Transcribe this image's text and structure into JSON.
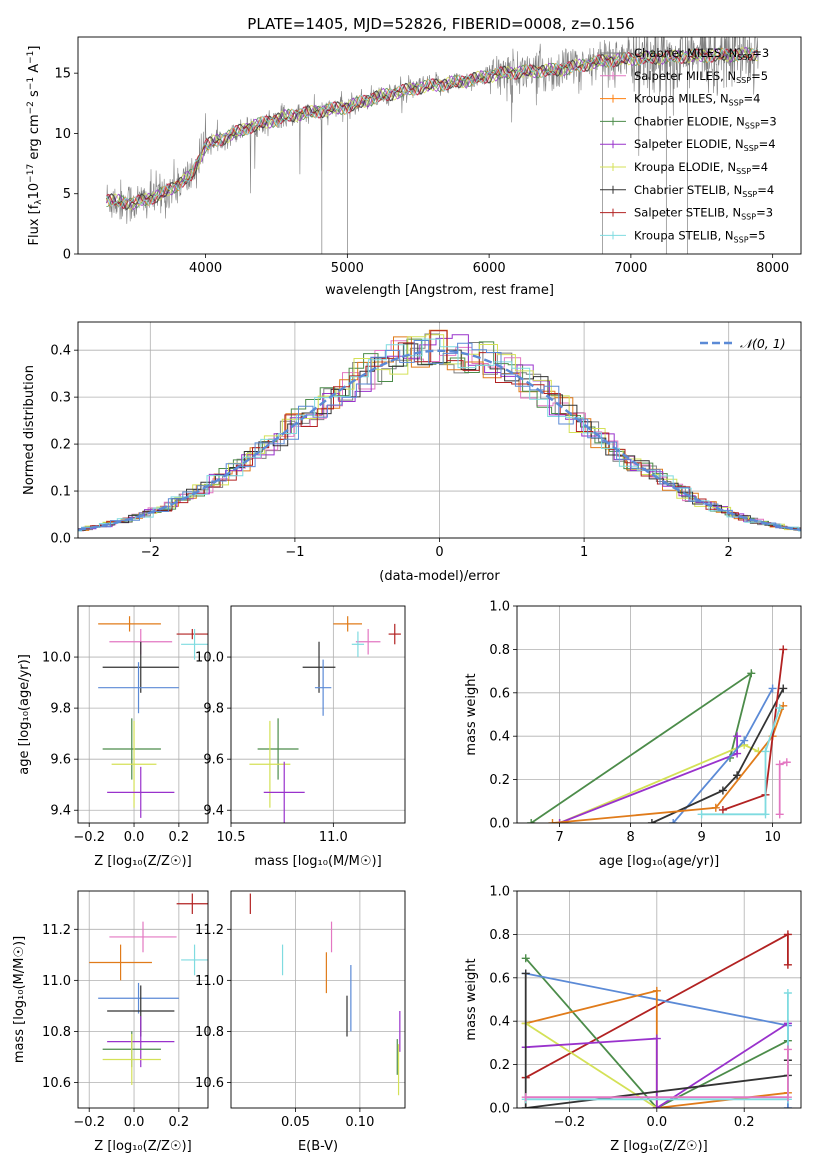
{
  "figure_title": "PLATE=1405, MJD=52826, FIBERID=0008, z=0.156",
  "colors": {
    "chabrier_miles": "#7f7f7f",
    "salpeter_miles": "#e377c2",
    "kroupa_miles": "#ff7f0e",
    "chabrier_elodie": "#4c8c4a",
    "salpeter_elodie": "#9932cc",
    "kroupa_elodie": "#d4e157",
    "chabrier_stelib": "#333333",
    "salpeter_stelib": "#b22222",
    "kroupa_stelib": "#7fdbe0",
    "blue": "#5b8ad6",
    "orange2": "#e07b1a",
    "normal": "#5b8ad6"
  },
  "chart_data": [
    {
      "type": "line",
      "title": "PLATE=1405, MJD=52826, FIBERID=0008, z=0.156",
      "xlabel": "wavelength [Angstrom, rest frame]",
      "ylabel_parts": [
        "Flux [f",
        "λ",
        "10",
        "−17",
        " erg cm",
        "−2",
        " s",
        "−1",
        " A",
        "−1",
        "]"
      ],
      "xlim": [
        3100,
        8200
      ],
      "ylim": [
        0,
        18
      ],
      "xticks": [
        4000,
        5000,
        6000,
        7000,
        8000
      ],
      "yticks": [
        0,
        5,
        10,
        15
      ],
      "legend_position": "upper-right",
      "legend": [
        {
          "label": "Chabrier MILES, N",
          "sub": "SSP",
          "suffix": "=3",
          "color_key": "chabrier_miles"
        },
        {
          "label": "Salpeter MILES, N",
          "sub": "SSP",
          "suffix": "=5",
          "color_key": "salpeter_miles"
        },
        {
          "label": "Kroupa MILES, N",
          "sub": "SSP",
          "suffix": "=4",
          "color_key": "kroupa_miles"
        },
        {
          "label": "Chabrier ELODIE, N",
          "sub": "SSP",
          "suffix": "=3",
          "color_key": "chabrier_elodie"
        },
        {
          "label": "Salpeter ELODIE, N",
          "sub": "SSP",
          "suffix": "=4",
          "color_key": "salpeter_elodie"
        },
        {
          "label": "Kroupa ELODIE, N",
          "sub": "SSP",
          "suffix": "=4",
          "color_key": "kroupa_elodie"
        },
        {
          "label": "Chabrier STELIB, N",
          "sub": "SSP",
          "suffix": "=4",
          "color_key": "chabrier_stelib"
        },
        {
          "label": "Salpeter STELIB, N",
          "sub": "SSP",
          "suffix": "=3",
          "color_key": "salpeter_stelib"
        },
        {
          "label": "Kroupa STELIB, N",
          "sub": "SSP",
          "suffix": "=5",
          "color_key": "kroupa_stelib"
        }
      ],
      "continuum": [
        [
          3300,
          4.5
        ],
        [
          3500,
          4.2
        ],
        [
          3700,
          5.0
        ],
        [
          3900,
          6.5
        ],
        [
          4000,
          9.0
        ],
        [
          4300,
          10.5
        ],
        [
          4600,
          11.5
        ],
        [
          5000,
          12.2
        ],
        [
          5200,
          13.0
        ],
        [
          5500,
          13.8
        ],
        [
          5800,
          14.3
        ],
        [
          6100,
          15.0
        ],
        [
          6500,
          15.3
        ],
        [
          6800,
          16.0
        ],
        [
          7000,
          16.2
        ],
        [
          7400,
          16.4
        ],
        [
          7900,
          16.6
        ]
      ]
    },
    {
      "type": "step",
      "xlabel": "(data-model)/error",
      "ylabel": "Normed distribution",
      "xlim": [
        -2.5,
        2.5
      ],
      "ylim": [
        0,
        0.46
      ],
      "xticks": [
        -2,
        -1,
        0,
        1,
        2
      ],
      "yticks": [
        0.0,
        0.1,
        0.2,
        0.3,
        0.4
      ],
      "grid": true,
      "legend_position": "upper-right",
      "legend": [
        {
          "label": "𝒩(0, 1)",
          "color_key": "normal",
          "style": "dashed"
        }
      ]
    },
    {
      "type": "scatter",
      "xlabel": "Z [log₁₀(Z/Z☉)]",
      "ylabel": "age  [log₁₀(age/yr)]",
      "xlim": [
        -0.25,
        0.33
      ],
      "ylim": [
        9.35,
        10.2
      ],
      "xticks": [
        -0.2,
        0.0,
        0.2
      ],
      "yticks": [
        9.4,
        9.6,
        9.8,
        10.0
      ],
      "grid": true,
      "points": [
        {
          "x": -0.02,
          "y": 10.13,
          "xerr": 0.14,
          "yerr": 0.03,
          "color_key": "orange2"
        },
        {
          "x": 0.03,
          "y": 10.06,
          "xerr": 0.14,
          "yerr": 0.05,
          "color_key": "salpeter_miles"
        },
        {
          "x": 0.26,
          "y": 10.09,
          "xerr": 0.07,
          "yerr": 0.02,
          "color_key": "salpeter_stelib"
        },
        {
          "x": 0.27,
          "y": 10.05,
          "xerr": 0.06,
          "yerr": 0.06,
          "color_key": "kroupa_stelib"
        },
        {
          "x": 0.03,
          "y": 9.96,
          "xerr": 0.17,
          "yerr": 0.1,
          "color_key": "chabrier_stelib"
        },
        {
          "x": 0.02,
          "y": 9.88,
          "xerr": 0.18,
          "yerr": 0.1,
          "color_key": "blue"
        },
        {
          "x": -0.01,
          "y": 9.64,
          "xerr": 0.13,
          "yerr": 0.12,
          "color_key": "chabrier_elodie"
        },
        {
          "x": 0.0,
          "y": 9.58,
          "xerr": 0.1,
          "yerr": 0.17,
          "color_key": "kroupa_elodie"
        },
        {
          "x": 0.03,
          "y": 9.47,
          "xerr": 0.15,
          "yerr": 0.1,
          "color_key": "salpeter_elodie"
        }
      ]
    },
    {
      "type": "scatter",
      "xlabel": "mass [log₁₀(M/M☉)]",
      "ylabel": "",
      "xlim": [
        10.5,
        11.35
      ],
      "ylim": [
        9.35,
        10.2
      ],
      "xticks": [
        10.5,
        11.0
      ],
      "yticks": [
        9.4,
        9.6,
        9.8,
        10.0
      ],
      "grid": true,
      "points": [
        {
          "x": 11.07,
          "y": 10.13,
          "xerr": 0.07,
          "yerr": 0.03,
          "color_key": "orange2"
        },
        {
          "x": 11.17,
          "y": 10.06,
          "xerr": 0.06,
          "yerr": 0.05,
          "color_key": "salpeter_miles"
        },
        {
          "x": 11.3,
          "y": 10.09,
          "xerr": 0.03,
          "yerr": 0.04,
          "color_key": "salpeter_stelib"
        },
        {
          "x": 11.12,
          "y": 10.05,
          "xerr": 0.03,
          "yerr": 0.05,
          "color_key": "kroupa_stelib"
        },
        {
          "x": 10.93,
          "y": 9.96,
          "xerr": 0.08,
          "yerr": 0.1,
          "color_key": "chabrier_stelib"
        },
        {
          "x": 10.95,
          "y": 9.88,
          "xerr": 0.04,
          "yerr": 0.11,
          "color_key": "blue"
        },
        {
          "x": 10.73,
          "y": 9.64,
          "xerr": 0.1,
          "yerr": 0.12,
          "color_key": "chabrier_elodie"
        },
        {
          "x": 10.69,
          "y": 9.58,
          "xerr": 0.1,
          "yerr": 0.17,
          "color_key": "kroupa_elodie"
        },
        {
          "x": 10.76,
          "y": 9.47,
          "xerr": 0.1,
          "yerr": 0.12,
          "color_key": "salpeter_elodie"
        }
      ]
    },
    {
      "type": "line",
      "xlabel": "age  [log₁₀(age/yr)]",
      "ylabel": "mass weight",
      "xlim": [
        6.4,
        10.4
      ],
      "ylim": [
        0,
        1.0
      ],
      "xticks": [
        7,
        8,
        9,
        10
      ],
      "yticks": [
        0.0,
        0.2,
        0.4,
        0.6,
        0.8,
        1.0
      ],
      "grid": true,
      "series": [
        {
          "color_key": "chabrier_elodie",
          "points": [
            [
              6.6,
              0.0
            ],
            [
              9.7,
              0.69
            ],
            [
              9.4,
              0.3
            ]
          ]
        },
        {
          "color_key": "kroupa_elodie",
          "points": [
            [
              7.0,
              0.0
            ],
            [
              9.6,
              0.36
            ],
            [
              9.8,
              0.33
            ]
          ]
        },
        {
          "color_key": "salpeter_elodie",
          "points": [
            [
              7.0,
              0.0
            ],
            [
              9.5,
              0.32
            ],
            [
              9.5,
              0.4
            ]
          ]
        },
        {
          "color_key": "blue",
          "points": [
            [
              8.6,
              0.0
            ],
            [
              9.6,
              0.38
            ],
            [
              10.0,
              0.62
            ]
          ]
        },
        {
          "color_key": "chabrier_stelib",
          "points": [
            [
              8.3,
              0.0
            ],
            [
              9.3,
              0.15
            ],
            [
              9.5,
              0.22
            ],
            [
              10.15,
              0.62
            ]
          ]
        },
        {
          "color_key": "orange2",
          "points": [
            [
              6.9,
              0.0
            ],
            [
              9.2,
              0.07
            ],
            [
              10.0,
              0.4
            ],
            [
              10.15,
              0.54
            ]
          ]
        },
        {
          "color_key": "salpeter_stelib",
          "points": [
            [
              9.3,
              0.06
            ],
            [
              9.9,
              0.13
            ],
            [
              10.15,
              0.8
            ]
          ]
        },
        {
          "color_key": "kroupa_stelib",
          "points": [
            [
              9.0,
              0.04
            ],
            [
              9.9,
              0.04
            ],
            [
              9.9,
              0.33
            ],
            [
              10.1,
              0.53
            ]
          ]
        },
        {
          "color_key": "salpeter_miles",
          "points": [
            [
              10.1,
              0.04
            ],
            [
              10.1,
              0.27
            ],
            [
              10.2,
              0.28
            ]
          ]
        }
      ]
    },
    {
      "type": "scatter",
      "xlabel": "Z [log₁₀(Z/Z☉)]",
      "ylabel": "mass [log₁₀(M/M☉)]",
      "xlim": [
        -0.25,
        0.33
      ],
      "ylim": [
        10.5,
        11.35
      ],
      "xticks": [
        -0.2,
        0.0,
        0.2
      ],
      "yticks": [
        10.6,
        10.8,
        11.0,
        11.2
      ],
      "grid": true,
      "points": [
        {
          "x": 0.26,
          "y": 11.3,
          "xerr": 0.07,
          "yerr": 0.04,
          "color_key": "salpeter_stelib"
        },
        {
          "x": 0.04,
          "y": 11.17,
          "xerr": 0.15,
          "yerr": 0.06,
          "color_key": "salpeter_miles"
        },
        {
          "x": 0.27,
          "y": 11.08,
          "xerr": 0.06,
          "yerr": 0.06,
          "color_key": "kroupa_stelib"
        },
        {
          "x": -0.06,
          "y": 11.07,
          "xerr": 0.14,
          "yerr": 0.07,
          "color_key": "orange2"
        },
        {
          "x": 0.02,
          "y": 10.93,
          "xerr": 0.18,
          "yerr": 0.06,
          "color_key": "blue"
        },
        {
          "x": 0.03,
          "y": 10.88,
          "xerr": 0.15,
          "yerr": 0.1,
          "color_key": "chabrier_stelib"
        },
        {
          "x": 0.03,
          "y": 10.76,
          "xerr": 0.15,
          "yerr": 0.1,
          "color_key": "salpeter_elodie"
        },
        {
          "x": -0.01,
          "y": 10.73,
          "xerr": 0.13,
          "yerr": 0.07,
          "color_key": "chabrier_elodie"
        },
        {
          "x": -0.01,
          "y": 10.69,
          "xerr": 0.13,
          "yerr": 0.1,
          "color_key": "kroupa_elodie"
        }
      ]
    },
    {
      "type": "scatter",
      "xlabel": "E(B-V)",
      "ylabel": "",
      "xlim": [
        0.0,
        0.135
      ],
      "ylim": [
        10.5,
        11.35
      ],
      "xticks": [
        0.05,
        0.1
      ],
      "yticks": [
        10.6,
        10.8,
        11.0,
        11.2
      ],
      "grid": true,
      "points": [
        {
          "x": 0.015,
          "y": 11.3,
          "xerr": 0,
          "yerr": 0.04,
          "color_key": "salpeter_stelib"
        },
        {
          "x": 0.078,
          "y": 11.17,
          "xerr": 0,
          "yerr": 0.06,
          "color_key": "salpeter_miles"
        },
        {
          "x": 0.04,
          "y": 11.08,
          "xerr": 0,
          "yerr": 0.06,
          "color_key": "kroupa_stelib"
        },
        {
          "x": 0.074,
          "y": 11.03,
          "xerr": 0,
          "yerr": 0.08,
          "color_key": "orange2"
        },
        {
          "x": 0.093,
          "y": 10.93,
          "xerr": 0,
          "yerr": 0.13,
          "color_key": "blue"
        },
        {
          "x": 0.09,
          "y": 10.86,
          "xerr": 0,
          "yerr": 0.08,
          "color_key": "chabrier_stelib"
        },
        {
          "x": 0.131,
          "y": 10.8,
          "xerr": 0,
          "yerr": 0.08,
          "color_key": "salpeter_elodie"
        },
        {
          "x": 0.129,
          "y": 10.7,
          "xerr": 0,
          "yerr": 0.07,
          "color_key": "chabrier_elodie"
        },
        {
          "x": 0.13,
          "y": 10.65,
          "xerr": 0,
          "yerr": 0.1,
          "color_key": "kroupa_elodie"
        }
      ]
    },
    {
      "type": "line",
      "xlabel": "Z [log₁₀(Z/Z☉)]",
      "ylabel": "mass weight",
      "xlim": [
        -0.32,
        0.33
      ],
      "ylim": [
        0,
        1.0
      ],
      "xticks": [
        -0.2,
        0.0,
        0.2
      ],
      "yticks": [
        0.0,
        0.2,
        0.4,
        0.6,
        0.8,
        1.0
      ],
      "grid": true,
      "series": [
        {
          "color_key": "salpeter_stelib",
          "points": [
            [
              -0.3,
              0.14
            ],
            [
              0.3,
              0.8
            ],
            [
              0.3,
              0.66
            ]
          ]
        },
        {
          "color_key": "chabrier_elodie",
          "points": [
            [
              -0.3,
              0.69
            ],
            [
              0.0,
              0.0
            ],
            [
              0.3,
              0.31
            ]
          ]
        },
        {
          "color_key": "blue",
          "points": [
            [
              -0.3,
              0.62
            ],
            [
              0.3,
              0.38
            ],
            [
              0.3,
              0.0
            ]
          ]
        },
        {
          "color_key": "orange2",
          "points": [
            [
              -0.3,
              0.39
            ],
            [
              0.0,
              0.54
            ],
            [
              0.0,
              0.0
            ],
            [
              0.3,
              0.07
            ]
          ]
        },
        {
          "color_key": "kroupa_elodie",
          "points": [
            [
              -0.3,
              0.39
            ],
            [
              0.0,
              0.0
            ]
          ]
        },
        {
          "color_key": "salpeter_elodie",
          "points": [
            [
              -0.3,
              0.28
            ],
            [
              0.0,
              0.32
            ],
            [
              0.0,
              0.0
            ],
            [
              0.3,
              0.39
            ]
          ]
        },
        {
          "color_key": "chabrier_stelib",
          "points": [
            [
              -0.3,
              0.62
            ],
            [
              -0.3,
              0.0
            ],
            [
              0.3,
              0.15
            ],
            [
              0.3,
              0.22
            ]
          ]
        },
        {
          "color_key": "kroupa_stelib",
          "points": [
            [
              -0.3,
              0.04
            ],
            [
              0.3,
              0.04
            ],
            [
              0.3,
              0.53
            ]
          ]
        },
        {
          "color_key": "salpeter_miles",
          "points": [
            [
              -0.3,
              0.05
            ],
            [
              0.3,
              0.05
            ],
            [
              0.3,
              0.27
            ]
          ]
        }
      ]
    }
  ]
}
